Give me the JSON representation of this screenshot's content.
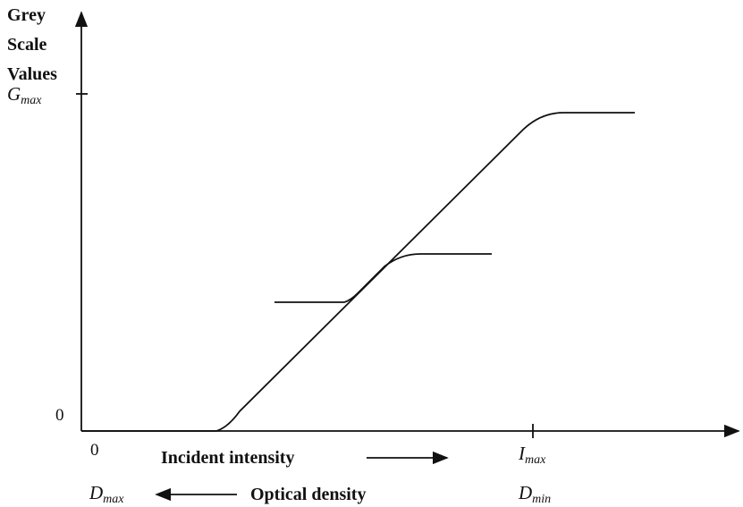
{
  "y_axis_label": [
    "Grey",
    "Scale",
    "Values"
  ],
  "y_ticks": {
    "gmax": {
      "base": "G",
      "sub": "max"
    },
    "zero": "0"
  },
  "x_axis": {
    "origin": "0",
    "imax": {
      "base": "I",
      "sub": "max"
    },
    "incident_label": "Incident intensity",
    "dmax": {
      "base": "D",
      "sub": "max"
    },
    "optical_label": "Optical density",
    "dmin": {
      "base": "D",
      "sub": "min"
    }
  }
}
